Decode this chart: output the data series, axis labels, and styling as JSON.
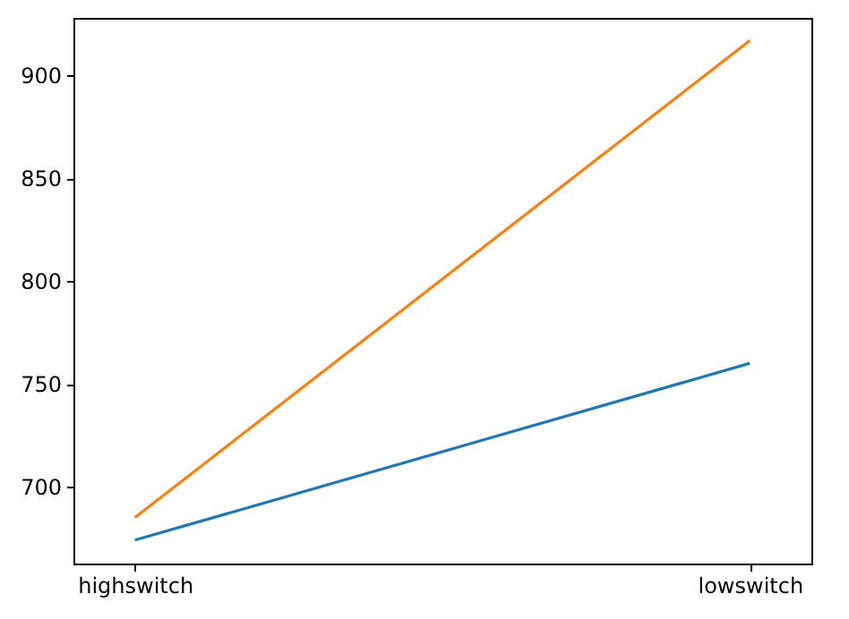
{
  "chart_data": {
    "type": "line",
    "categories": [
      "highswitch",
      "lowswitch"
    ],
    "series": [
      {
        "color": "#1f77b4",
        "values": [
          674,
          760
        ]
      },
      {
        "color": "#ff7f0e",
        "values": [
          685,
          917
        ]
      }
    ],
    "ylim": [
      662.6,
      928
    ],
    "yticks": [
      700,
      750,
      800,
      850,
      900
    ],
    "grid": false,
    "marker": "none",
    "line_style": "solid"
  }
}
